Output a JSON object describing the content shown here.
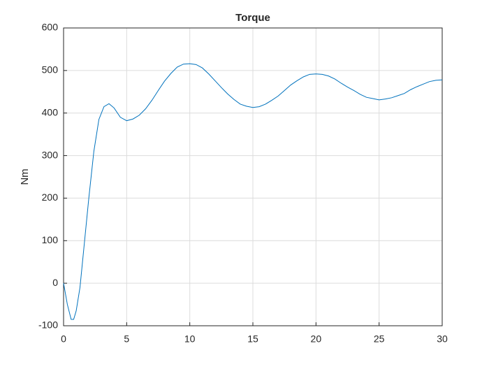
{
  "chart_data": {
    "type": "line",
    "title": "Torque",
    "y_label": "Nm",
    "x": [
      0,
      0.3,
      0.6,
      0.8,
      1.0,
      1.3,
      1.6,
      2.0,
      2.4,
      2.8,
      3.2,
      3.6,
      4.0,
      4.5,
      5.0,
      5.5,
      6.0,
      6.5,
      7.0,
      7.5,
      8.0,
      8.5,
      9.0,
      9.5,
      10.0,
      10.5,
      11.0,
      11.5,
      12.0,
      12.5,
      13.0,
      13.5,
      14.0,
      14.5,
      15.0,
      15.5,
      16.0,
      16.5,
      17.0,
      17.5,
      18.0,
      18.5,
      19.0,
      19.5,
      20.0,
      20.5,
      21.0,
      21.5,
      22.0,
      22.5,
      23.0,
      23.5,
      24.0,
      24.5,
      25.0,
      25.5,
      26.0,
      26.5,
      27.0,
      27.5,
      28.0,
      28.5,
      29.0,
      29.5,
      30.0
    ],
    "series": [
      {
        "name": "Torque",
        "color": "#0072bd",
        "values": [
          0,
          -50,
          -85,
          -85,
          -65,
          -10,
          80,
          200,
          310,
          385,
          415,
          422,
          412,
          390,
          382,
          386,
          395,
          410,
          430,
          453,
          475,
          493,
          508,
          515,
          516,
          514,
          506,
          492,
          476,
          460,
          445,
          432,
          421,
          416,
          413,
          415,
          421,
          430,
          440,
          453,
          466,
          476,
          485,
          491,
          492,
          491,
          487,
          480,
          470,
          461,
          453,
          444,
          437,
          434,
          431,
          433,
          436,
          441,
          446,
          455,
          462,
          468,
          474,
          477,
          478
        ]
      }
    ],
    "xlim": [
      0,
      30
    ],
    "xticks": [
      0,
      5,
      10,
      15,
      20,
      25,
      30
    ],
    "ylim": [
      -100,
      600
    ],
    "yticks": [
      -100,
      0,
      100,
      200,
      300,
      400,
      500,
      600
    ],
    "grid": true
  }
}
